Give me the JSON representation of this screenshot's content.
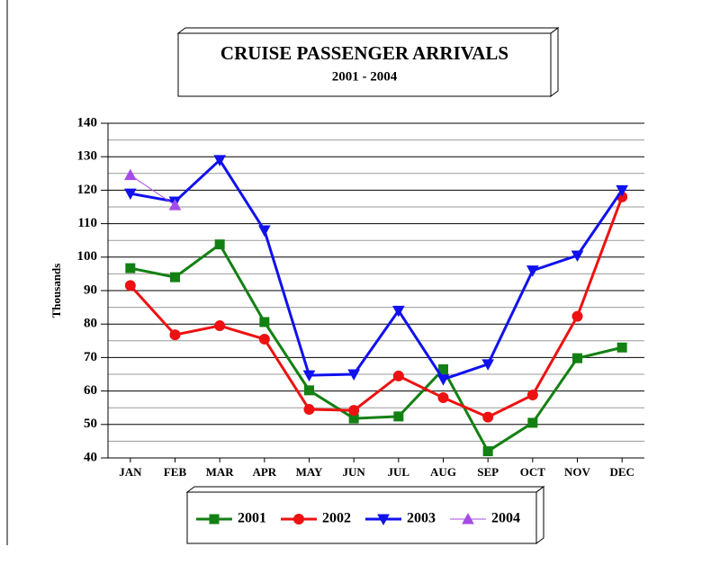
{
  "chart_data": {
    "type": "line",
    "title": "CRUISE PASSENGER ARRIVALS",
    "subtitle": "2001 - 2004",
    "y_label": "Thousands",
    "categories": [
      "JAN",
      "FEB",
      "MAR",
      "APR",
      "MAY",
      "JUN",
      "JUL",
      "AUG",
      "SEP",
      "OCT",
      "NOV",
      "DEC"
    ],
    "series": [
      {
        "name": "2001",
        "color": "#138013",
        "marker": "square",
        "line_width": 3,
        "values": [
          96.7,
          94,
          103.8,
          80.6,
          60.2,
          51.8,
          52.4,
          66.5,
          42,
          50.5,
          69.8,
          73
        ]
      },
      {
        "name": "2002",
        "color": "#ee1111",
        "marker": "circle",
        "line_width": 3,
        "values": [
          91.5,
          76.8,
          79.5,
          75.5,
          54.5,
          54.2,
          64.5,
          58,
          52.2,
          58.8,
          82.3,
          118
        ]
      },
      {
        "name": "2003",
        "color": "#1111ee",
        "marker": "triangle-down",
        "line_width": 3,
        "values": [
          119,
          116.6,
          129,
          108,
          64.7,
          65,
          84,
          63.5,
          68,
          96,
          100.5,
          120
        ]
      },
      {
        "name": "2004",
        "color": "#a64ce6",
        "marker": "triangle-up",
        "line_width": 1,
        "values": [
          124.5,
          115.5,
          null,
          null,
          null,
          null,
          null,
          null,
          null,
          null,
          null,
          null
        ]
      }
    ],
    "ylim": [
      40,
      140
    ],
    "yticks": [
      40,
      50,
      60,
      70,
      80,
      90,
      100,
      110,
      120,
      130,
      140
    ],
    "minor_yticks": [
      45,
      55,
      65,
      75,
      85,
      95,
      105,
      115,
      125,
      135
    ],
    "grid": true,
    "legend": "bottom"
  }
}
